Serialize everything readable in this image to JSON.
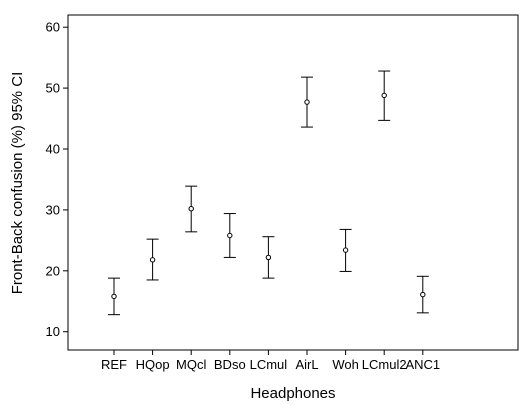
{
  "chart_data": {
    "type": "scatter",
    "title": "",
    "xlabel": "Headphones",
    "ylabel": "Front-Back confusion (%) 95% CI",
    "ylim": [
      7,
      62
    ],
    "yticks": [
      10,
      20,
      30,
      40,
      50,
      60
    ],
    "categories": [
      "REF",
      "HQop",
      "MQcl",
      "BDso",
      "LCmul",
      "AirL",
      "Woh",
      "LCmul2",
      "ANC1"
    ],
    "mean": [
      15.8,
      21.8,
      30.2,
      25.8,
      22.2,
      47.7,
      23.4,
      48.8,
      16.1
    ],
    "ci_lower": [
      12.8,
      18.5,
      26.4,
      22.2,
      18.8,
      43.6,
      19.9,
      44.7,
      13.1
    ],
    "ci_upper": [
      18.8,
      25.2,
      33.9,
      29.4,
      25.6,
      51.8,
      26.8,
      52.8,
      19.1
    ],
    "grid": false,
    "legend": "none"
  }
}
